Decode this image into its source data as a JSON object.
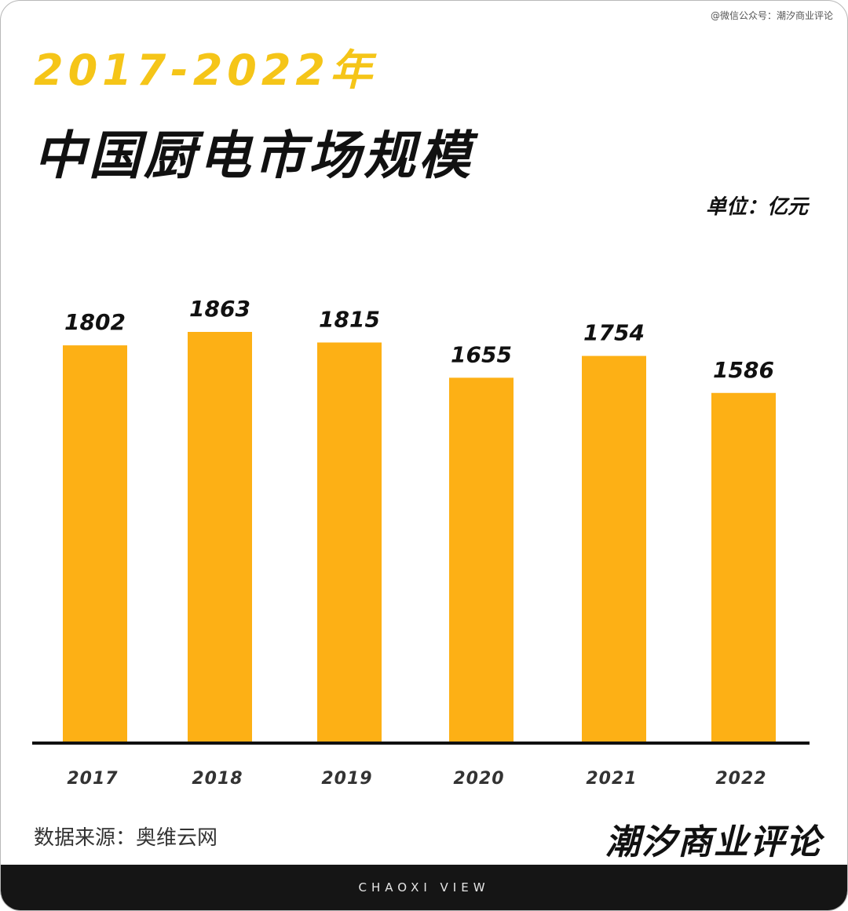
{
  "watermark": "@微信公众号：潮汐商业评论",
  "title_years": "2017-2022年",
  "title_main": "中国厨电市场规模",
  "unit": "单位：亿元",
  "source": "数据来源：奥维云网",
  "brand": "潮汐商业评论",
  "footer": "CHAOXI VIEW",
  "colors": {
    "bar": "#fdb015",
    "title_accent": "#f5c518",
    "footer_bg": "#151515"
  },
  "chart_data": {
    "type": "bar",
    "title": "2017-2022年 中国厨电市场规模",
    "ylabel": "单位：亿元",
    "categories": [
      "2017",
      "2018",
      "2019",
      "2020",
      "2021",
      "2022"
    ],
    "values": [
      1802,
      1863,
      1815,
      1655,
      1754,
      1586
    ],
    "ylim": [
      0,
      1863
    ],
    "grid": false,
    "legend": "none"
  }
}
